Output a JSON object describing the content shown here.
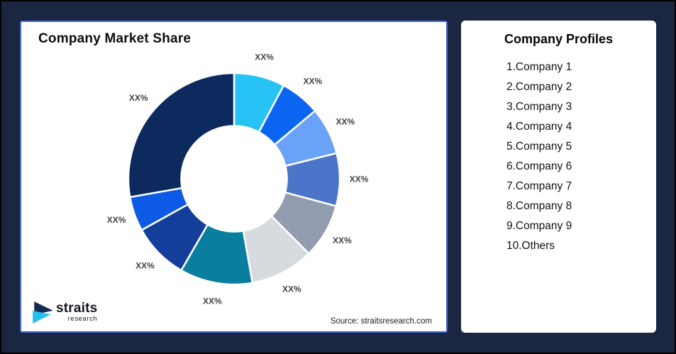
{
  "page": {
    "background_color": "#1B2742",
    "card_color": "#FFFFFF"
  },
  "chart_card": {
    "title": "Company Market Share",
    "source": "Source: straitsresearch.com",
    "border_color": "#4466DD"
  },
  "brand": {
    "name": "straits",
    "subtitle": "research",
    "mark_navy": "#13294E",
    "mark_cyan": "#29BDEF"
  },
  "profiles_panel": {
    "title": "Company Profiles",
    "items": [
      "1.Company 1",
      "2.Company 2",
      "3.Company 3",
      "4.Company 4",
      "5.Company 5",
      "6.Company 6",
      "7.Company 7",
      "8.Company 8",
      "9.Company 9",
      "10.Others"
    ]
  },
  "chart_data": {
    "type": "pie",
    "title": "Company Market Share",
    "donut": true,
    "inner_radius_ratio": 0.5,
    "start_angle_deg": 0,
    "clockwise": true,
    "legend": "none",
    "label_note": "All slices show placeholder label XX%",
    "source": "Source: straitsresearch.com",
    "segments": [
      {
        "name": "Company 1",
        "label": "XX%",
        "angle_deg": 28,
        "percent": 7.8,
        "color": "#27C3F4"
      },
      {
        "name": "Company 2",
        "label": "XX%",
        "angle_deg": 22,
        "percent": 6.1,
        "color": "#0A66F0"
      },
      {
        "name": "Company 3",
        "label": "XX%",
        "angle_deg": 26,
        "percent": 7.2,
        "color": "#6AA2F7"
      },
      {
        "name": "Company 4",
        "label": "XX%",
        "angle_deg": 29,
        "percent": 8.1,
        "color": "#4A75C9"
      },
      {
        "name": "Company 5",
        "label": "XX%",
        "angle_deg": 30,
        "percent": 8.3,
        "color": "#929CAF"
      },
      {
        "name": "Company 6",
        "label": "XX%",
        "angle_deg": 35,
        "percent": 9.7,
        "color": "#D7DADF"
      },
      {
        "name": "Company 7",
        "label": "XX%",
        "angle_deg": 40,
        "percent": 11.1,
        "color": "#097E9F"
      },
      {
        "name": "Company 8",
        "label": "XX%",
        "angle_deg": 31,
        "percent": 8.6,
        "color": "#133E99"
      },
      {
        "name": "Company 9",
        "label": "XX%",
        "angle_deg": 19,
        "percent": 5.3,
        "color": "#0D5BE4"
      },
      {
        "name": "Others",
        "label": "XX%",
        "angle_deg": 100,
        "percent": 27.8,
        "color": "#0D2A5E"
      }
    ]
  }
}
